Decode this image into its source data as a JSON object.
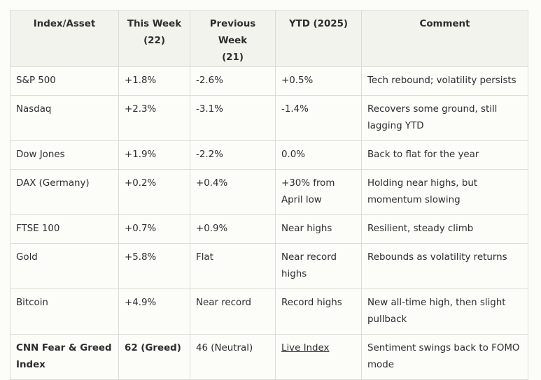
{
  "headers": [
    "Index/Asset",
    "This Week\n(22)",
    "Previous Week\n(21)",
    "YTD (2025)",
    "Comment"
  ],
  "rows": [
    {
      "asset": "S&P 500",
      "this_week": "+1.8%",
      "prev_week": "-2.6%",
      "ytd": "+0.5%",
      "comment": "Tech rebound; volatility persists"
    },
    {
      "asset": "Nasdaq",
      "this_week": "+2.3%",
      "prev_week": "-3.1%",
      "ytd": "-1.4%",
      "comment": "Recovers some ground, still lagging YTD"
    },
    {
      "asset": "Dow Jones",
      "this_week": "+1.9%",
      "prev_week": "-2.2%",
      "ytd": "0.0%",
      "comment": "Back to flat for the year"
    },
    {
      "asset": "DAX (Germany)",
      "this_week": "+0.2%",
      "prev_week": "+0.4%",
      "ytd": "+30% from April low",
      "comment": "Holding near highs, but momentum slowing"
    },
    {
      "asset": "FTSE 100",
      "this_week": "+0.7%",
      "prev_week": "+0.9%",
      "ytd": "Near highs",
      "comment": "Resilient, steady climb"
    },
    {
      "asset": "Gold",
      "this_week": "+5.8%",
      "prev_week": "Flat",
      "ytd": "Near record highs",
      "comment": "Rebounds as volatility returns"
    },
    {
      "asset": "Bitcoin",
      "this_week": "+4.9%",
      "prev_week": "Near record",
      "ytd": "Record highs",
      "comment": "New all-time high, then slight pullback"
    },
    {
      "asset": "CNN Fear & Greed Index",
      "this_week": "62 (Greed)",
      "prev_week": "46 (Neutral)",
      "ytd": "Live Index",
      "comment": "Sentiment swings back to FOMO mode"
    }
  ]
}
